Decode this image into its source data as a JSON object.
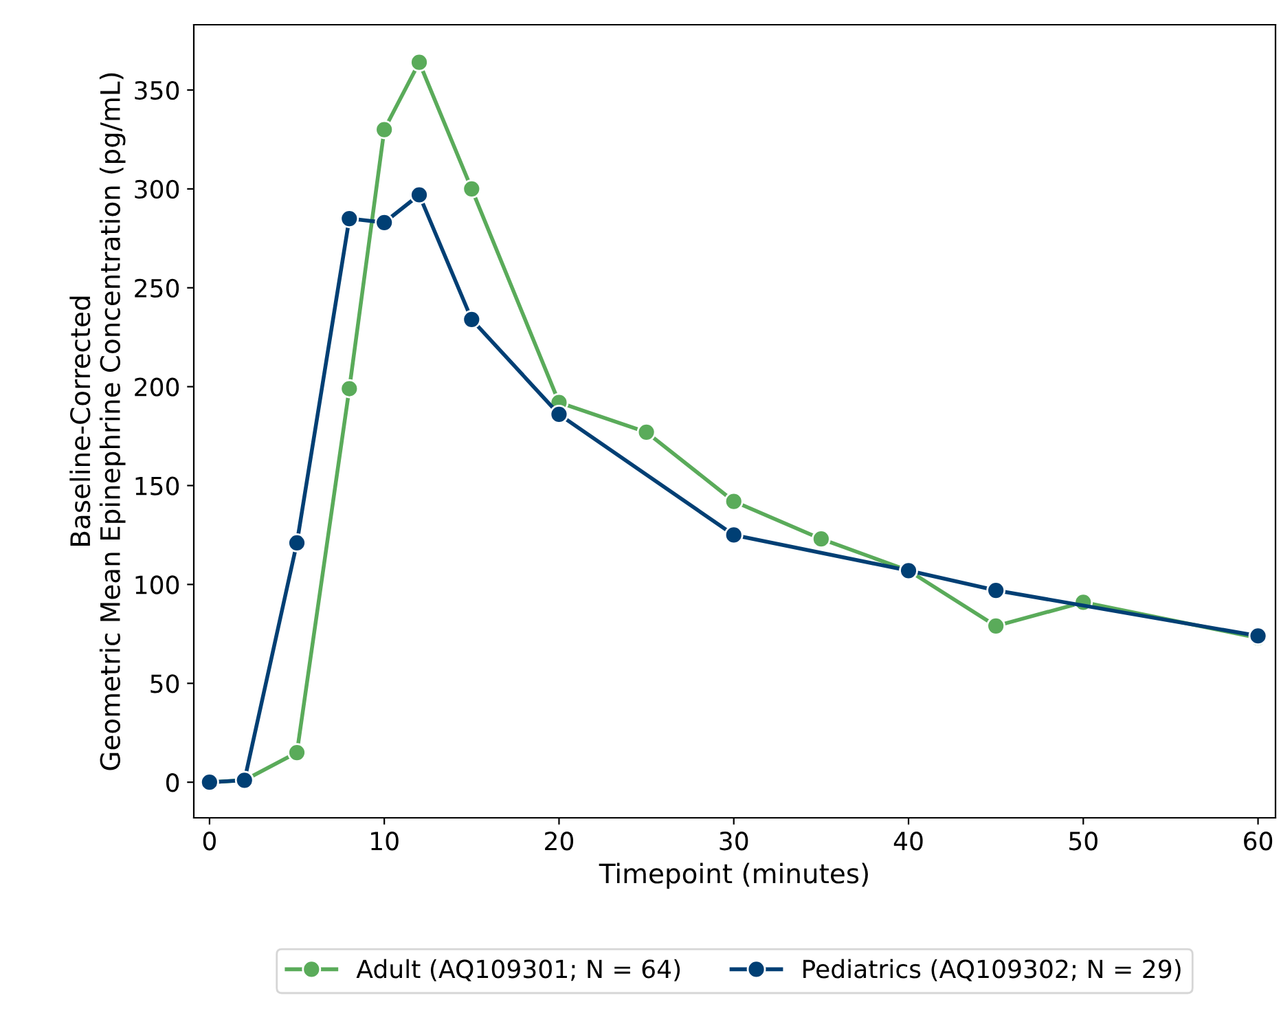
{
  "chart_data": {
    "type": "line",
    "xlabel": "Timepoint (minutes)",
    "ylabel": "Baseline-Corrected\nGeometric Mean Epinephrine Concentration (pg/mL)",
    "xlim": [
      -0.9,
      61
    ],
    "xticks": [
      0,
      10,
      20,
      30,
      40,
      50,
      60
    ],
    "ylim": [
      -18,
      383
    ],
    "yticks": [
      0,
      50,
      100,
      150,
      200,
      250,
      300,
      350
    ],
    "series": [
      {
        "name": "Adult (AQ109301; N = 64)",
        "color": "#5aab5a",
        "x": [
          0,
          2,
          5,
          8,
          10,
          12,
          15,
          20,
          25,
          30,
          35,
          40,
          45,
          50,
          60
        ],
        "values": [
          0,
          1,
          15,
          199,
          330,
          364,
          300,
          192,
          177,
          142,
          123,
          107,
          79,
          91,
          73
        ]
      },
      {
        "name": "Pediatrics (AQ109302; N = 29)",
        "color": "#003f74",
        "x": [
          0,
          2,
          5,
          8,
          10,
          12,
          15,
          20,
          30,
          40,
          45,
          60
        ],
        "values": [
          0,
          1,
          121,
          285,
          283,
          297,
          234,
          186,
          125,
          107,
          97,
          74
        ]
      }
    ],
    "marker": "circle",
    "line_style": "solid",
    "grid": false,
    "legend": "bottom"
  }
}
